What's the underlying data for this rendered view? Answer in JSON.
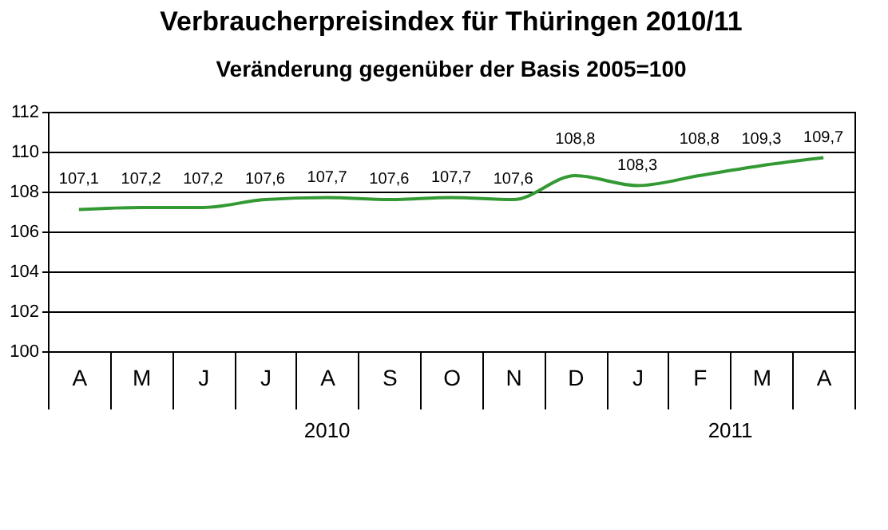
{
  "chart_data": {
    "type": "line",
    "title": "Verbraucherpreisindex für Thüringen 2010/11",
    "subtitle": "Veränderung gegenüber der Basis 2005=100",
    "categories": [
      "A",
      "M",
      "J",
      "J",
      "A",
      "S",
      "O",
      "N",
      "D",
      "J",
      "F",
      "M",
      "A"
    ],
    "series": [
      {
        "color": "#339933",
        "values": [
          107.1,
          107.2,
          107.2,
          107.6,
          107.7,
          107.6,
          107.7,
          107.6,
          108.8,
          108.3,
          108.8,
          109.3,
          109.7
        ],
        "value_labels": [
          "107,1",
          "107,2",
          "107,2",
          "107,6",
          "107,7",
          "107,6",
          "107,7",
          "107,6",
          "108,8",
          "108,3",
          "108,8",
          "109,3",
          "109,7"
        ]
      }
    ],
    "ylim": [
      100,
      112
    ],
    "yticks": [
      100,
      102,
      104,
      106,
      108,
      110,
      112
    ],
    "grid": "y",
    "marker": "none",
    "line_style": "solid",
    "annotations": [
      "2010",
      "2011"
    ]
  }
}
